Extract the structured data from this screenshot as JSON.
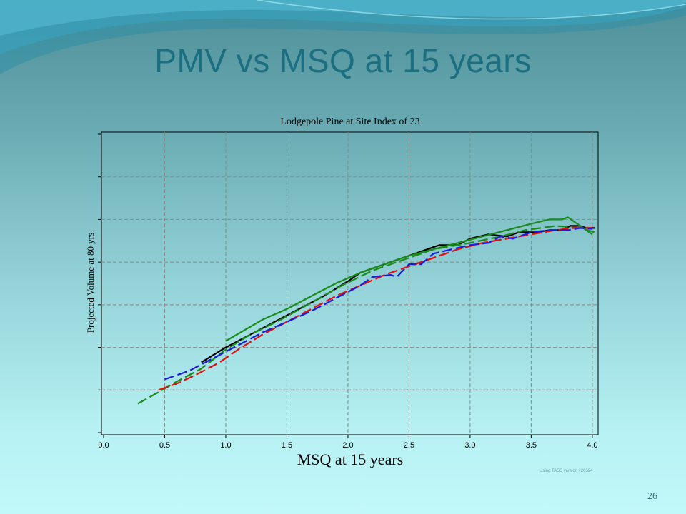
{
  "slide": {
    "title": "PMV vs MSQ at 15 years",
    "page_number": "26",
    "footnote": "Using TASS version v20524"
  },
  "colors": {
    "title": "#1b6f80",
    "series_black": "#000000",
    "series_green": "#1a8a1a",
    "series_red": "#e01010",
    "series_blue": "#1a1ae0"
  },
  "chart_data": {
    "type": "line",
    "title": "Lodgepole Pine at Site Index of 23",
    "xlabel": "MSQ at 15 years",
    "ylabel": "Projected Volume at 80 yrs",
    "xlim": [
      0.0,
      4.03
    ],
    "ylim": [
      0,
      7
    ],
    "x_ticks": [
      "0.0",
      "0.5",
      "1.0",
      "1.5",
      "2.0",
      "2.5",
      "3.0",
      "3.5",
      "4.0"
    ],
    "y_ticks_labelled": false,
    "grid": true,
    "legend": "none",
    "series": [
      {
        "color": "#000000",
        "dash": "solid",
        "x": [
          0.8,
          1.0,
          1.2,
          1.4,
          1.6,
          1.8,
          2.0,
          2.1,
          2.3,
          2.5,
          2.7,
          2.75,
          2.9,
          3.0,
          3.15,
          3.3,
          3.4,
          3.55,
          3.65,
          3.75,
          3.82,
          3.9,
          3.95,
          4.02
        ],
        "y": [
          1.65,
          2.0,
          2.3,
          2.6,
          2.9,
          3.2,
          3.55,
          3.75,
          3.95,
          4.15,
          4.35,
          4.4,
          4.4,
          4.55,
          4.65,
          4.6,
          4.7,
          4.7,
          4.75,
          4.75,
          4.85,
          4.85,
          4.8,
          4.8
        ]
      },
      {
        "color": "#1a8a1a",
        "dash": "solid",
        "x": [
          1.0,
          1.15,
          1.3,
          1.5,
          1.7,
          1.9,
          2.1,
          2.3,
          2.5,
          2.7,
          2.9,
          3.1,
          3.3,
          3.5,
          3.65,
          3.75,
          3.8,
          3.85,
          3.9,
          3.95,
          4.0
        ],
        "y": [
          2.15,
          2.4,
          2.65,
          2.9,
          3.2,
          3.5,
          3.75,
          3.95,
          4.15,
          4.3,
          4.45,
          4.6,
          4.75,
          4.9,
          5.0,
          5.0,
          5.05,
          4.95,
          4.85,
          4.75,
          4.65
        ]
      },
      {
        "color": "#1a8a1a",
        "dash": "dashed",
        "x": [
          0.28,
          0.45,
          0.6,
          0.8,
          1.0,
          1.2,
          1.45,
          1.7,
          1.95,
          2.2,
          2.45,
          2.7,
          3.0,
          3.25,
          3.45,
          3.7,
          3.9,
          4.02
        ],
        "y": [
          0.68,
          0.95,
          1.2,
          1.5,
          1.95,
          2.3,
          2.65,
          3.05,
          3.45,
          3.8,
          4.05,
          4.3,
          4.45,
          4.6,
          4.75,
          4.85,
          4.8,
          4.7
        ]
      },
      {
        "color": "#e01010",
        "dash": "dashed",
        "x": [
          0.45,
          0.6,
          0.75,
          0.95,
          1.1,
          1.3,
          1.5,
          1.7,
          1.9,
          2.1,
          2.3,
          2.5,
          2.7,
          2.9,
          3.1,
          3.3,
          3.5,
          3.7,
          3.85,
          4.0
        ],
        "y": [
          1.0,
          1.15,
          1.35,
          1.65,
          1.95,
          2.3,
          2.6,
          2.9,
          3.2,
          3.45,
          3.7,
          3.9,
          4.1,
          4.3,
          4.45,
          4.55,
          4.65,
          4.75,
          4.8,
          4.8
        ]
      },
      {
        "color": "#1a1ae0",
        "dash": "dashed",
        "x": [
          0.5,
          0.7,
          0.9,
          1.1,
          1.3,
          1.5,
          1.7,
          1.9,
          2.1,
          2.2,
          2.35,
          2.4,
          2.5,
          2.6,
          2.7,
          2.85,
          3.0,
          3.15,
          3.25,
          3.35,
          3.5,
          3.65,
          3.8,
          3.9,
          4.0
        ],
        "y": [
          1.25,
          1.45,
          1.75,
          2.05,
          2.35,
          2.6,
          2.85,
          3.15,
          3.45,
          3.65,
          3.7,
          3.65,
          3.95,
          3.95,
          4.2,
          4.3,
          4.4,
          4.45,
          4.6,
          4.55,
          4.7,
          4.75,
          4.75,
          4.8,
          4.78
        ]
      }
    ]
  }
}
